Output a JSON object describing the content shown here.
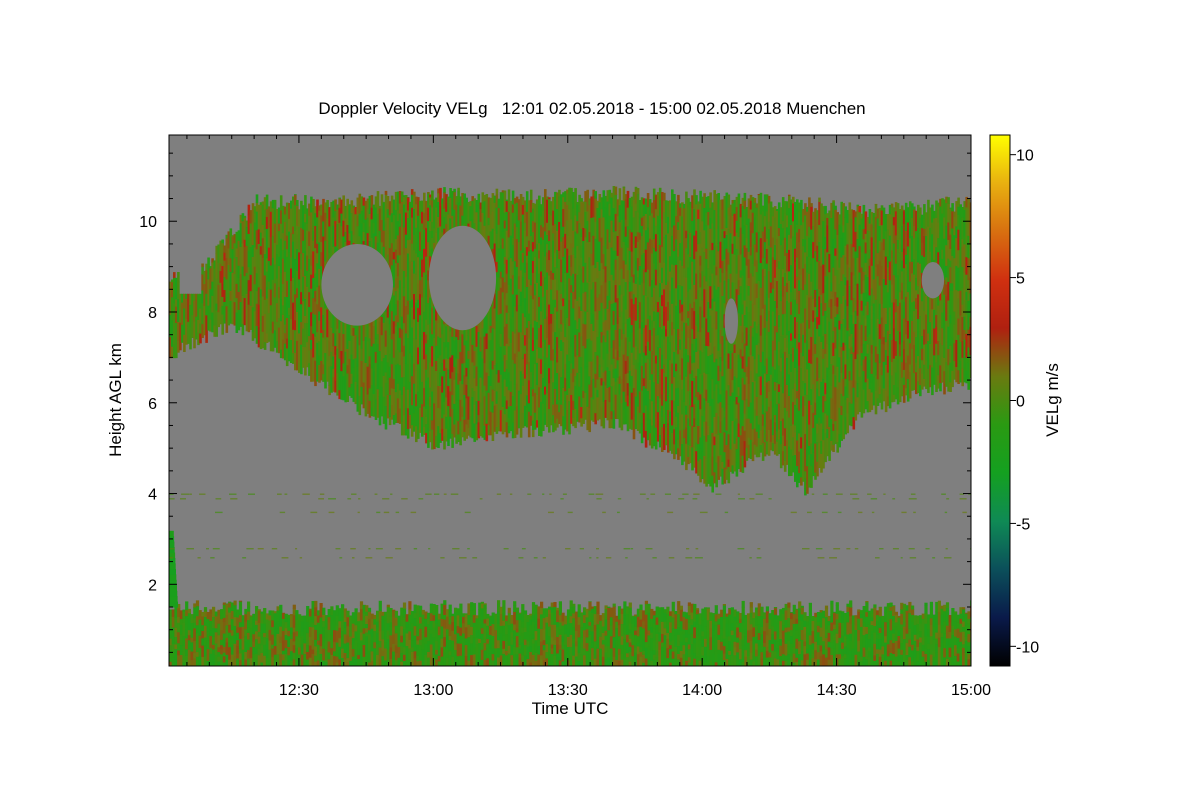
{
  "chart_data": {
    "type": "heatmap",
    "title": "Doppler Velocity VELg   12:01 02.05.2018 - 15:00 02.05.2018 Muenchen",
    "xlabel": "Time UTC",
    "ylabel": "Height AGL km",
    "colorbar_label": "VELg m/s",
    "x_range_minutes_utc": [
      721,
      900
    ],
    "x_ticks": [
      {
        "minutes": 750,
        "label": "12:30"
      },
      {
        "minutes": 780,
        "label": "13:00"
      },
      {
        "minutes": 810,
        "label": "13:30"
      },
      {
        "minutes": 840,
        "label": "14:00"
      },
      {
        "minutes": 870,
        "label": "14:30"
      },
      {
        "minutes": 900,
        "label": "15:00"
      }
    ],
    "ylim": [
      0.2,
      11.9
    ],
    "y_ticks": [
      {
        "value": 2,
        "label": "2"
      },
      {
        "value": 4,
        "label": "4"
      },
      {
        "value": 6,
        "label": "6"
      },
      {
        "value": 8,
        "label": "8"
      },
      {
        "value": 10,
        "label": "10"
      }
    ],
    "clim": [
      -10.8,
      10.8
    ],
    "colorbar_ticks": [
      {
        "value": 10,
        "label": "10"
      },
      {
        "value": 5,
        "label": "5"
      },
      {
        "value": 0,
        "label": "0"
      },
      {
        "value": -5,
        "label": "-5"
      },
      {
        "value": -10,
        "label": "-10"
      }
    ],
    "no_data_color": "#7f7f7f",
    "colormap": [
      "#000000",
      "#0a1a4a",
      "#0b4f5a",
      "#0f8a55",
      "#14a020",
      "#2a9a12",
      "#6a7a10",
      "#b02010",
      "#d03010",
      "#d87010",
      "#e8b010",
      "#ffff00"
    ],
    "cloud_layer": {
      "top_km": [
        {
          "minutes": 721,
          "km": 8.9
        },
        {
          "minutes": 730,
          "km": 9.3
        },
        {
          "minutes": 740,
          "km": 10.6
        },
        {
          "minutes": 760,
          "km": 10.6
        },
        {
          "minutes": 780,
          "km": 10.8
        },
        {
          "minutes": 800,
          "km": 10.7
        },
        {
          "minutes": 820,
          "km": 10.8
        },
        {
          "minutes": 840,
          "km": 10.7
        },
        {
          "minutes": 860,
          "km": 10.6
        },
        {
          "minutes": 880,
          "km": 10.4
        },
        {
          "minutes": 900,
          "km": 10.6
        }
      ],
      "base_km": [
        {
          "minutes": 721,
          "km": 6.9
        },
        {
          "minutes": 735,
          "km": 7.6
        },
        {
          "minutes": 750,
          "km": 6.6
        },
        {
          "minutes": 765,
          "km": 5.6
        },
        {
          "minutes": 780,
          "km": 4.9
        },
        {
          "minutes": 800,
          "km": 5.2
        },
        {
          "minutes": 820,
          "km": 5.4
        },
        {
          "minutes": 835,
          "km": 4.6
        },
        {
          "minutes": 842,
          "km": 4.0
        },
        {
          "minutes": 855,
          "km": 4.8
        },
        {
          "minutes": 863,
          "km": 3.9
        },
        {
          "minutes": 875,
          "km": 5.6
        },
        {
          "minutes": 890,
          "km": 6.1
        },
        {
          "minutes": 900,
          "km": 6.3
        }
      ]
    },
    "boundary_layer": {
      "bottom_km": 0.2,
      "top_km": 1.3
    },
    "noise_bands_km": [
      3.6,
      3.9,
      4.0,
      2.8,
      2.6
    ]
  }
}
